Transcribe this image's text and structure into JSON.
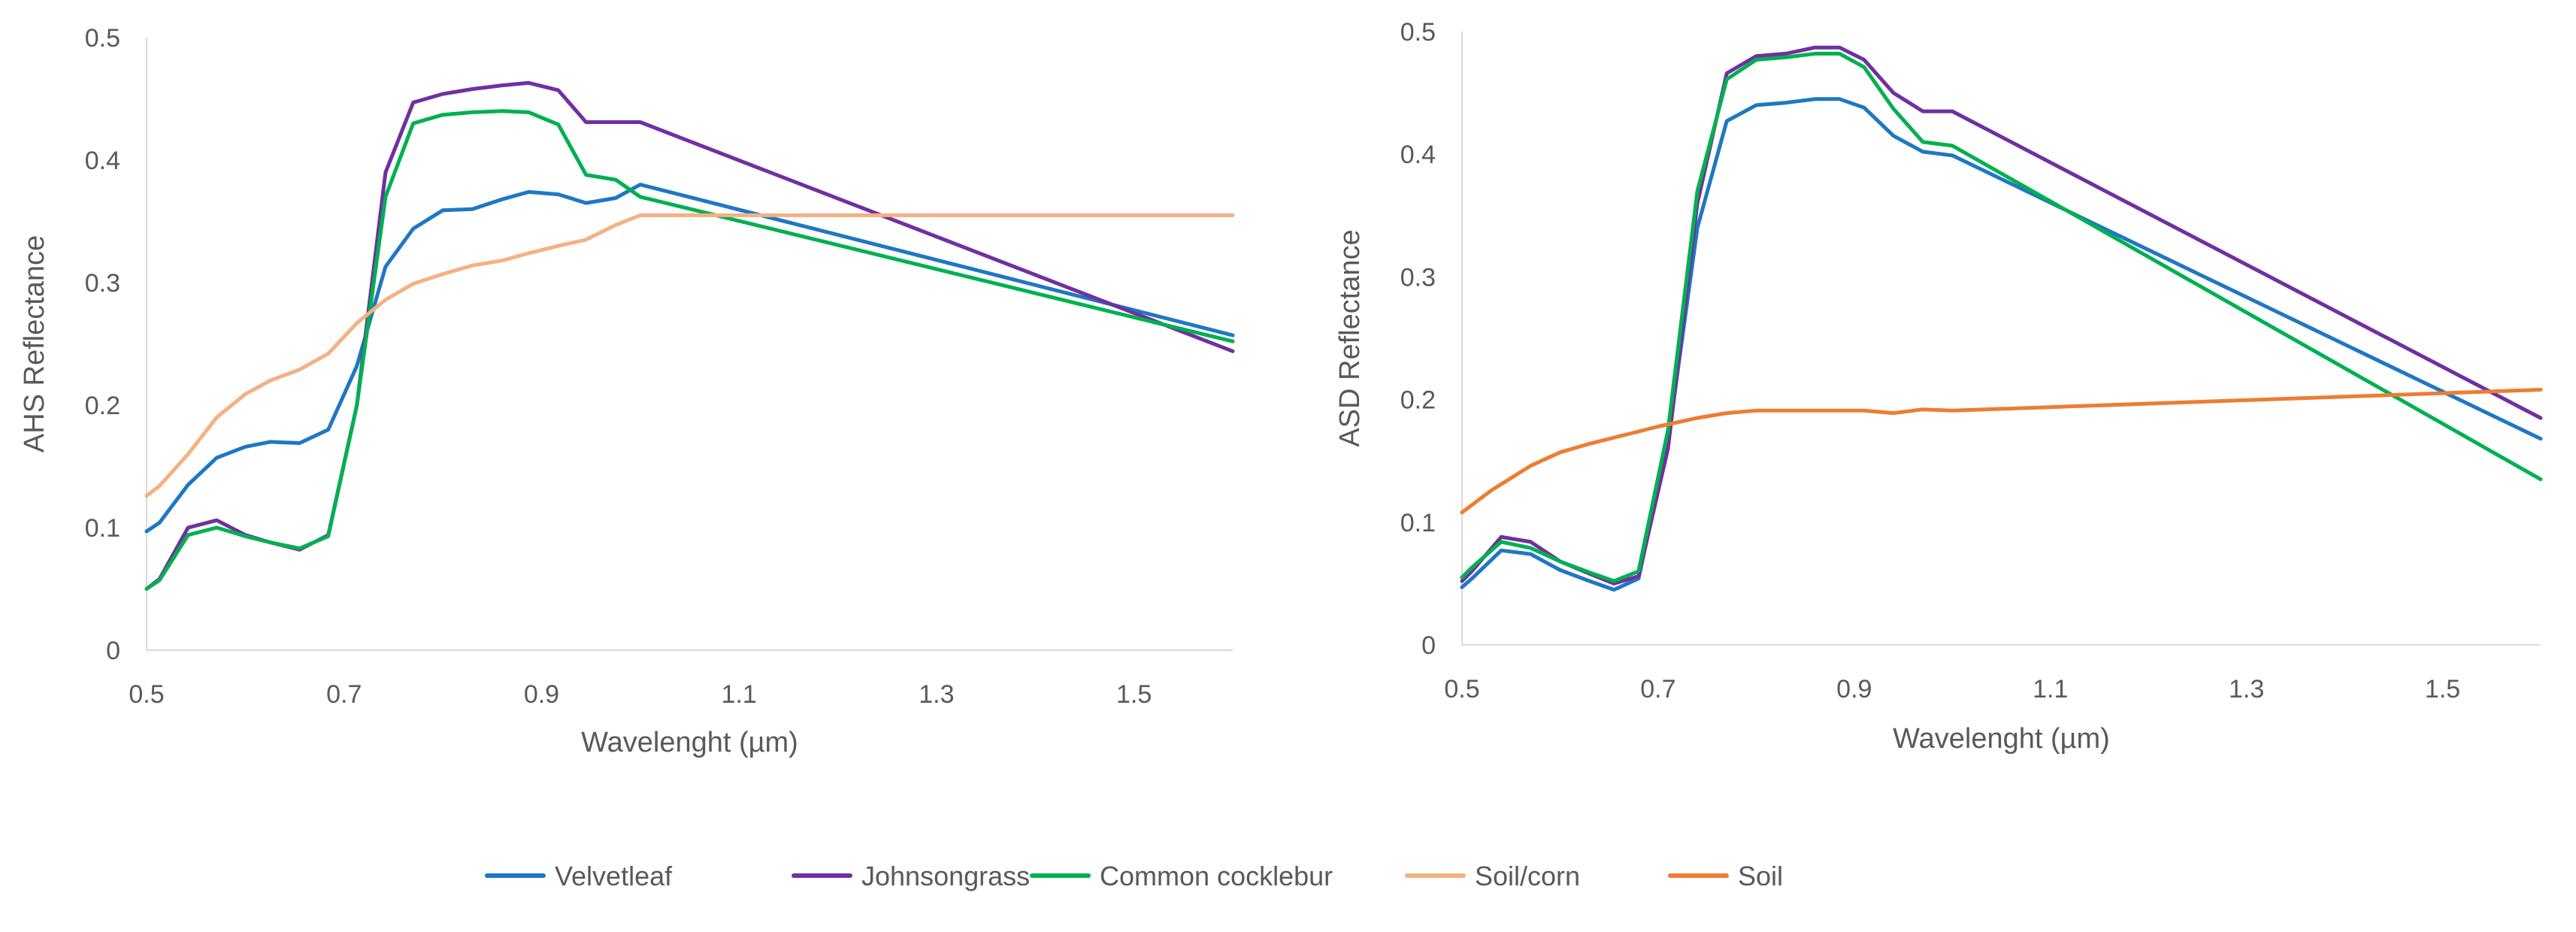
{
  "chart_data": [
    {
      "type": "line",
      "title": "",
      "xlabel": "Wavelenght (µm)",
      "ylabel": "AHS Reflectance",
      "xlim": [
        0.5,
        1.6
      ],
      "ylim": [
        0,
        0.5
      ],
      "xticks": [
        0.5,
        0.7,
        0.9,
        1.1,
        1.3,
        1.5
      ],
      "xtick_labels": [
        "0.5",
        "0.7",
        "0.9",
        "1.1",
        "1.3",
        "1.5"
      ],
      "yticks": [
        0,
        0.1,
        0.2,
        0.3,
        0.4,
        0.5
      ],
      "ytick_labels": [
        "0",
        "0.1",
        "0.2",
        "0.3",
        "0.4",
        "0.5"
      ],
      "grid": false,
      "series": [
        {
          "name": "Velvetleaf",
          "color": "#1f77c4",
          "x": [
            0.5,
            0.513,
            0.542,
            0.571,
            0.6,
            0.625,
            0.655,
            0.684,
            0.713,
            0.742,
            0.77,
            0.8,
            0.83,
            0.86,
            0.887,
            0.917,
            0.945,
            0.975,
            1.0,
            1.6
          ],
          "y": [
            0.097,
            0.104,
            0.135,
            0.157,
            0.166,
            0.17,
            0.169,
            0.18,
            0.232,
            0.313,
            0.344,
            0.359,
            0.36,
            0.368,
            0.374,
            0.372,
            0.365,
            0.369,
            0.38,
            0.257
          ]
        },
        {
          "name": "Johnsongrass",
          "color": "#7030a0",
          "x": [
            0.5,
            0.513,
            0.542,
            0.571,
            0.6,
            0.625,
            0.655,
            0.684,
            0.713,
            0.742,
            0.77,
            0.8,
            0.83,
            0.86,
            0.887,
            0.917,
            0.945,
            0.975,
            1.0,
            1.6
          ],
          "y": [
            0.05,
            0.058,
            0.1,
            0.106,
            0.094,
            0.088,
            0.082,
            0.094,
            0.2,
            0.39,
            0.447,
            0.454,
            0.458,
            0.461,
            0.463,
            0.457,
            0.431,
            0.431,
            0.431,
            0.244
          ]
        },
        {
          "name": "Common cocklebur",
          "color": "#00b050",
          "x": [
            0.5,
            0.513,
            0.542,
            0.571,
            0.6,
            0.625,
            0.655,
            0.684,
            0.713,
            0.742,
            0.77,
            0.8,
            0.83,
            0.86,
            0.887,
            0.917,
            0.945,
            0.975,
            1.0,
            1.6
          ],
          "y": [
            0.05,
            0.057,
            0.094,
            0.1,
            0.093,
            0.088,
            0.083,
            0.093,
            0.2,
            0.37,
            0.43,
            0.437,
            0.439,
            0.44,
            0.439,
            0.429,
            0.388,
            0.384,
            0.37,
            0.252
          ]
        },
        {
          "name": "Soil/corn",
          "color": "#f4b183",
          "x": [
            0.5,
            0.513,
            0.542,
            0.571,
            0.6,
            0.625,
            0.655,
            0.684,
            0.713,
            0.742,
            0.77,
            0.8,
            0.83,
            0.86,
            0.887,
            0.917,
            0.945,
            0.975,
            1.0,
            1.6
          ],
          "y": [
            0.126,
            0.134,
            0.16,
            0.19,
            0.209,
            0.22,
            0.229,
            0.242,
            0.267,
            0.286,
            0.299,
            0.307,
            0.314,
            0.318,
            0.324,
            0.33,
            0.335,
            0.347,
            0.355,
            0.355
          ]
        }
      ]
    },
    {
      "type": "line",
      "title": "",
      "xlabel": "Wavelenght (µm)",
      "ylabel": "ASD Reflectance",
      "xlim": [
        0.5,
        1.6
      ],
      "ylim": [
        0,
        0.5
      ],
      "xticks": [
        0.5,
        0.7,
        0.9,
        1.1,
        1.3,
        1.5
      ],
      "xtick_labels": [
        "0.5",
        "0.7",
        "0.9",
        "1.1",
        "1.3",
        "1.5"
      ],
      "yticks": [
        0,
        0.1,
        0.2,
        0.3,
        0.4,
        0.5
      ],
      "ytick_labels": [
        "0",
        "0.1",
        "0.2",
        "0.3",
        "0.4",
        "0.5"
      ],
      "grid": false,
      "series": [
        {
          "name": "Velvetleaf",
          "color": "#1f77c4",
          "x": [
            0.5,
            0.51,
            0.54,
            0.57,
            0.6,
            0.63,
            0.655,
            0.68,
            0.71,
            0.74,
            0.77,
            0.8,
            0.83,
            0.86,
            0.885,
            0.91,
            0.94,
            0.97,
            1.0,
            1.6
          ],
          "y": [
            0.047,
            0.054,
            0.077,
            0.074,
            0.061,
            0.052,
            0.045,
            0.054,
            0.165,
            0.34,
            0.427,
            0.44,
            0.442,
            0.445,
            0.445,
            0.438,
            0.415,
            0.402,
            0.399,
            0.168
          ]
        },
        {
          "name": "Johnsongrass",
          "color": "#7030a0",
          "x": [
            0.5,
            0.51,
            0.54,
            0.57,
            0.6,
            0.63,
            0.655,
            0.68,
            0.71,
            0.74,
            0.77,
            0.8,
            0.83,
            0.86,
            0.885,
            0.91,
            0.94,
            0.97,
            1.0,
            1.6
          ],
          "y": [
            0.052,
            0.06,
            0.088,
            0.084,
            0.068,
            0.058,
            0.05,
            0.056,
            0.16,
            0.36,
            0.466,
            0.48,
            0.482,
            0.487,
            0.487,
            0.477,
            0.45,
            0.435,
            0.435,
            0.185
          ]
        },
        {
          "name": "Common cocklebur",
          "color": "#00b050",
          "x": [
            0.5,
            0.51,
            0.54,
            0.57,
            0.6,
            0.63,
            0.655,
            0.68,
            0.71,
            0.74,
            0.77,
            0.8,
            0.83,
            0.86,
            0.885,
            0.91,
            0.94,
            0.97,
            1.0,
            1.6
          ],
          "y": [
            0.055,
            0.063,
            0.084,
            0.079,
            0.068,
            0.059,
            0.052,
            0.06,
            0.175,
            0.37,
            0.461,
            0.477,
            0.479,
            0.482,
            0.482,
            0.471,
            0.437,
            0.41,
            0.407,
            0.135
          ]
        },
        {
          "name": "Soil",
          "color": "#ed7d31",
          "x": [
            0.5,
            0.53,
            0.57,
            0.6,
            0.63,
            0.66,
            0.7,
            0.74,
            0.77,
            0.8,
            0.85,
            0.91,
            0.94,
            0.97,
            1.0,
            1.6
          ],
          "y": [
            0.108,
            0.126,
            0.146,
            0.157,
            0.164,
            0.17,
            0.178,
            0.185,
            0.189,
            0.191,
            0.191,
            0.191,
            0.189,
            0.192,
            0.191,
            0.208
          ]
        }
      ]
    }
  ],
  "legend": {
    "position": "bottom",
    "items": [
      {
        "name": "Velvetleaf",
        "color": "#1f77c4"
      },
      {
        "name": "Johnsongrass",
        "color": "#7030a0"
      },
      {
        "name": "Common cocklebur",
        "color": "#00b050"
      },
      {
        "name": "Soil/corn",
        "color": "#f4b183"
      },
      {
        "name": "Soil",
        "color": "#ed7d31"
      }
    ]
  }
}
